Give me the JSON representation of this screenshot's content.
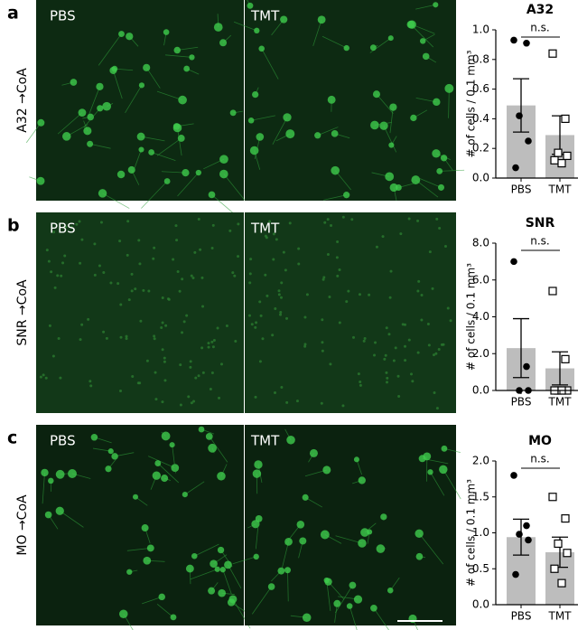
{
  "panels": [
    {
      "letter": "a",
      "image_labels": [
        "PBS",
        "TMT"
      ],
      "side_label": "A32 →CoA"
    },
    {
      "letter": "b",
      "image_labels": [
        "PBS",
        "TMT"
      ],
      "side_label": "SNR →CoA"
    },
    {
      "letter": "c",
      "image_labels": [
        "PBS",
        "TMT"
      ],
      "side_label": "MO →CoA"
    }
  ],
  "chart_data": [
    {
      "type": "bar",
      "title": "A32",
      "annotation": "n.s.",
      "ylabel": "# of cells / 0.1 mm³",
      "categories": [
        "PBS",
        "TMT"
      ],
      "values": [
        0.49,
        0.29
      ],
      "errors": [
        0.18,
        0.13
      ],
      "points": [
        [
          0.93,
          0.91,
          0.42,
          0.25,
          0.07
        ],
        [
          0.84,
          0.4,
          0.17,
          0.15,
          0.12,
          0.1
        ]
      ],
      "ylim": [
        0,
        1.0
      ],
      "yticks": [
        {
          "value": 0,
          "label": "0.0"
        },
        0.2,
        0.4,
        0.6,
        0.8,
        {
          "value": 1.0,
          "label": "1.0"
        }
      ]
    },
    {
      "type": "bar",
      "title": "SNR",
      "annotation": "n.s.",
      "ylabel": "# of cells / 0.1 mm³",
      "categories": [
        "PBS",
        "TMT"
      ],
      "values": [
        2.3,
        1.2
      ],
      "errors": [
        1.6,
        0.9
      ],
      "points": [
        [
          7.0,
          1.3,
          0.0,
          0.0
        ],
        [
          5.4,
          1.7,
          0.0,
          0.0,
          0.0,
          0.0
        ]
      ],
      "ylim": [
        0,
        8.0
      ],
      "yticks": [
        {
          "value": 0,
          "label": "0.0"
        },
        {
          "value": 2,
          "label": "2.0"
        },
        {
          "value": 4,
          "label": "4.0"
        },
        {
          "value": 6,
          "label": "6.0"
        },
        {
          "value": 8,
          "label": "8.0"
        }
      ]
    },
    {
      "type": "bar",
      "title": "MO",
      "annotation": "n.s.",
      "ylabel": "# of cells / 0.1 mm³",
      "categories": [
        "PBS",
        "TMT"
      ],
      "values": [
        0.94,
        0.73
      ],
      "errors": [
        0.25,
        0.21
      ],
      "points": [
        [
          1.8,
          1.1,
          0.98,
          0.9,
          0.42
        ],
        [
          1.5,
          1.2,
          0.85,
          0.72,
          0.5,
          0.3
        ]
      ],
      "ylim": [
        0,
        2.0
      ],
      "yticks": [
        {
          "value": 0,
          "label": "0.0"
        },
        0.5,
        {
          "value": 1.0,
          "label": "1.0"
        },
        1.5,
        {
          "value": 2.0,
          "label": "2.0"
        }
      ]
    }
  ]
}
